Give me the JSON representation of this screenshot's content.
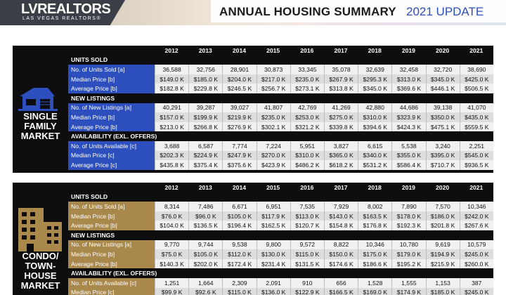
{
  "header": {
    "logo_main": "LVREALTORS",
    "logo_sub": "LAS VEGAS REALTORS®",
    "title": "ANNUAL HOUSING SUMMARY",
    "update": "2021 UPDATE"
  },
  "colors": {
    "sfm_accent": "#2c4fbd",
    "condo_accent": "#a9884c",
    "panel_bg": "#0d0d0f"
  },
  "years": [
    "2012",
    "2013",
    "2014",
    "2015",
    "2016",
    "2017",
    "2018",
    "2019",
    "2020",
    "2021"
  ],
  "sfm": {
    "label_lines": [
      "SINGLE",
      "FAMILY",
      "MARKET"
    ],
    "icon": "house-icon",
    "sections": [
      {
        "title": "UNITS SOLD",
        "rows": [
          {
            "label": "No. of Units Sold [a]",
            "values": [
              "36,588",
              "32,756",
              "28,901",
              "30,873",
              "33,345",
              "35,078",
              "32,639",
              "32,458",
              "32,720",
              "38,690"
            ]
          },
          {
            "label": "Median Price [b]",
            "values": [
              "$149.0 K",
              "$185.0 K",
              "$204.0 K",
              "$217.0 K",
              "$235.0 K",
              "$267.9 K",
              "$295.3 K",
              "$313.0 K",
              "$345.0 K",
              "$425.0 K"
            ]
          },
          {
            "label": "Average Price [b]",
            "values": [
              "$182.8 K",
              "$229.8 K",
              "$246.5 K",
              "$256.7 K",
              "$273.1 K",
              "$313.8 K",
              "$345.0 K",
              "$369.6 K",
              "$446.1 K",
              "$506.5 K"
            ]
          }
        ]
      },
      {
        "title": "NEW LISTINGS",
        "rows": [
          {
            "label": "No. of New Listings [a]",
            "values": [
              "40,291",
              "39,287",
              "39,027",
              "41,807",
              "42,769",
              "41,269",
              "42,880",
              "44,686",
              "39,138",
              "41,070"
            ]
          },
          {
            "label": "Median Price [b]",
            "values": [
              "$157.0 K",
              "$199.9 K",
              "$219.9 K",
              "$235.0 K",
              "$253.0 K",
              "$275.0 K",
              "$310.0 K",
              "$323.9 K",
              "$350.0 K",
              "$435.0 K"
            ]
          },
          {
            "label": "Average Price [b]",
            "values": [
              "$213.0 K",
              "$266.8 K",
              "$276.9 K",
              "$302.1 K",
              "$321.2 K",
              "$339.8 K",
              "$394.6 K",
              "$424.3 K",
              "$475.1 K",
              "$559.5 K"
            ]
          }
        ]
      },
      {
        "title": "AVAILABILITY (EXL. OFFERS)",
        "rows": [
          {
            "label": "No. of Units Available [c]",
            "values": [
              "3,688",
              "6,587",
              "7,774",
              "7,224",
              "5,951",
              "3,827",
              "6,615",
              "5,538",
              "3,240",
              "2,251"
            ]
          },
          {
            "label": "Median Price [c]",
            "values": [
              "$202.3 K",
              "$224.9 K",
              "$247.9 K",
              "$270.0 K",
              "$310.0 K",
              "$365.0 K",
              "$340.0 K",
              "$355.0 K",
              "$395.0 K",
              "$545.0 K"
            ]
          },
          {
            "label": "Average Price [c]",
            "values": [
              "$435.8 K",
              "$375.4 K",
              "$375.6 K",
              "$423.9 K",
              "$486.2 K",
              "$618.2 K",
              "$531.2 K",
              "$586.4 K",
              "$710.7 K",
              "$936.5 K"
            ]
          }
        ]
      }
    ]
  },
  "condo": {
    "label_lines": [
      "CONDO/",
      "TOWN-",
      "HOUSE",
      "MARKET"
    ],
    "icon": "building-icon",
    "sections": [
      {
        "title": "UNITS SOLD",
        "rows": [
          {
            "label": "No. of Units Sold [a]",
            "values": [
              "8,314",
              "7,486",
              "6,671",
              "6,951",
              "7,535",
              "7,929",
              "8,002",
              "7,890",
              "7,570",
              "10,346"
            ]
          },
          {
            "label": "Median Price [b]",
            "values": [
              "$76.0 K",
              "$96.0 K",
              "$105.0 K",
              "$117.9 K",
              "$113.0 K",
              "$143.0 K",
              "$163.5 K",
              "$178.0 K",
              "$186.0 K",
              "$242.0 K"
            ]
          },
          {
            "label": "Average Price [b]",
            "values": [
              "$104.0 K",
              "$136.5 K",
              "$196.4 K",
              "$162.5 K",
              "$120.7 K",
              "$154.8 K",
              "$176.8 K",
              "$192.3 K",
              "$201.8 K",
              "$267.6 K"
            ]
          }
        ]
      },
      {
        "title": "NEW LISTINGS",
        "rows": [
          {
            "label": "No. of New Listings [a]",
            "values": [
              "9,770",
              "9,744",
              "9,538",
              "9,800",
              "9,572",
              "8,822",
              "10,346",
              "10,780",
              "9,619",
              "10,579"
            ]
          },
          {
            "label": "Median Price [b]",
            "values": [
              "$75.0 K",
              "$105.0 K",
              "$112.0 K",
              "$130.0 K",
              "$115.0 K",
              "$150.0 K",
              "$175.0 K",
              "$179.0 K",
              "$194.9 K",
              "$245.0 K"
            ]
          },
          {
            "label": "Average Price [b]",
            "values": [
              "$140.3 K",
              "$202.0 K",
              "$172.4 K",
              "$231.4 K",
              "$131.5 K",
              "$174.6 K",
              "$186.6 K",
              "$195.2 K",
              "$215.9 K",
              "$260.0 K"
            ]
          }
        ]
      },
      {
        "title": "AVAILABILITY (EXL. OFFERS)",
        "rows": [
          {
            "label": "No. of Units Available [c]",
            "values": [
              "1,251",
              "1,664",
              "2,309",
              "2,091",
              "910",
              "656",
              "1,528",
              "1,555",
              "1,153",
              "387"
            ]
          },
          {
            "label": "Median Price [c]",
            "values": [
              "$99.9 K",
              "$92.6 K",
              "$115.0 K",
              "$136.0 K",
              "$122.9 K",
              "$166.5 K",
              "$169.0 K",
              "$174.9 K",
              "$185.0 K",
              "$245.0 K"
            ]
          }
        ]
      }
    ]
  }
}
